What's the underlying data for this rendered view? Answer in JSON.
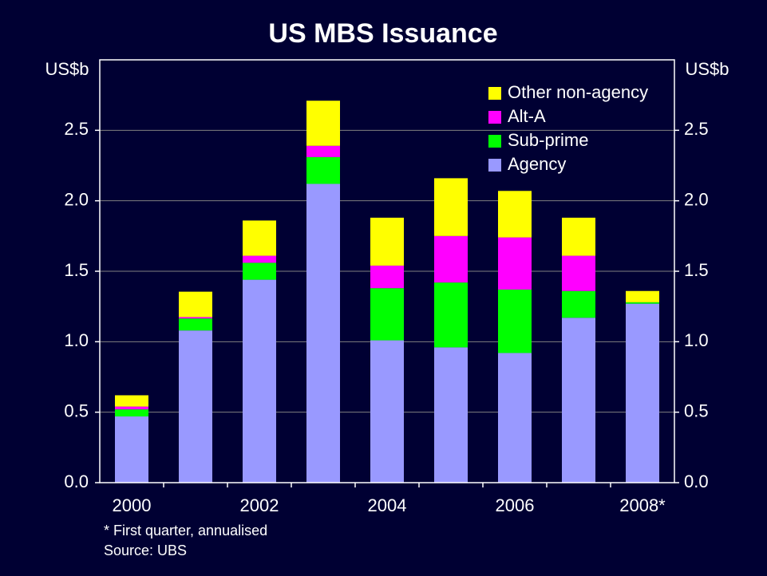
{
  "chart_data": {
    "type": "stacked_bar",
    "title": "US MBS Issuance",
    "y_label": "US$b",
    "y2_label": "US$b",
    "categories": [
      "2000",
      null,
      "2002",
      null,
      "2004",
      null,
      "2006",
      null,
      "2008*"
    ],
    "series": [
      {
        "name": "Agency",
        "color": "#9999ff",
        "values": [
          0.47,
          1.08,
          1.44,
          2.12,
          1.01,
          0.96,
          0.92,
          1.17,
          1.27
        ]
      },
      {
        "name": "Sub-prime",
        "color": "#00ff00",
        "values": [
          0.05,
          0.085,
          0.12,
          0.19,
          0.37,
          0.46,
          0.45,
          0.19,
          0.01
        ]
      },
      {
        "name": "Alt-A",
        "color": "#ff00ff",
        "values": [
          0.02,
          0.01,
          0.05,
          0.08,
          0.16,
          0.33,
          0.37,
          0.25,
          0
        ]
      },
      {
        "name": "Other non-agency",
        "color": "#ffff00",
        "values": [
          0.08,
          0.18,
          0.25,
          0.32,
          0.34,
          0.41,
          0.33,
          0.27,
          0.08
        ]
      }
    ],
    "ylim": [
      0,
      3
    ],
    "yticks": [
      {
        "value": 0,
        "label": "0.0"
      },
      0.5,
      {
        "value": 1,
        "label": "1.0"
      },
      1.5,
      {
        "value": 2,
        "label": "2.0"
      },
      2.5
    ],
    "y2lim": [
      0,
      3
    ],
    "y2ticks": [
      {
        "value": 0,
        "label": "0.0"
      },
      0.5,
      {
        "value": 1,
        "label": "1.0"
      },
      1.5,
      {
        "value": 2,
        "label": "2.0"
      },
      2.5
    ],
    "grid": true,
    "legend": "top-right",
    "notes": [
      "*   First quarter, annualised",
      "Source: UBS"
    ]
  }
}
